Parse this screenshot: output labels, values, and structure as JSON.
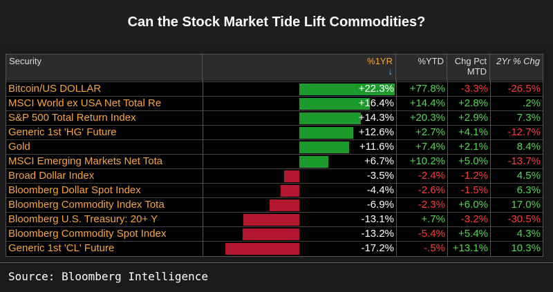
{
  "title": "Can the Stock Market Tide Lift Commodities?",
  "source": "Source: Bloomberg Intelligence",
  "colors": {
    "positive_bar": "#1c9b2c",
    "negative_bar": "#b3162f",
    "positive_text": "#52d852",
    "negative_text": "#ff3a3a",
    "security_text": "#f7a53c",
    "sort_header": "#f7a53c"
  },
  "header": {
    "security": "Security",
    "one_yr": "%1YR",
    "sort_icon": "↓",
    "ytd": "%YTD",
    "mtd_line1": "Chg Pct",
    "mtd_line2": "MTD",
    "two_yr": "2Yr % Chg"
  },
  "chart_data": {
    "type": "table",
    "columns": [
      "Security",
      "%1YR",
      "%YTD",
      "Chg Pct MTD",
      "2Yr % Chg"
    ],
    "rows": [
      {
        "security": "Bitcoin/US DOLLAR",
        "one_yr": 22.3,
        "one_yr_label": "+22.3%",
        "ytd": "+77.8%",
        "mtd": "-3.3%",
        "two_yr": "-26.5%"
      },
      {
        "security": "MSCI World ex USA Net Total Re",
        "one_yr": 16.4,
        "one_yr_label": "+16.4%",
        "ytd": "+14.4%",
        "mtd": "+2.8%",
        "two_yr": ".2%"
      },
      {
        "security": "S&P 500 Total Return Index",
        "one_yr": 14.3,
        "one_yr_label": "+14.3%",
        "ytd": "+20.3%",
        "mtd": "+2.9%",
        "two_yr": "7.3%"
      },
      {
        "security": "Generic 1st 'HG' Future",
        "one_yr": 12.6,
        "one_yr_label": "+12.6%",
        "ytd": "+2.7%",
        "mtd": "+4.1%",
        "two_yr": "-12.7%"
      },
      {
        "security": "Gold",
        "one_yr": 11.6,
        "one_yr_label": "+11.6%",
        "ytd": "+7.4%",
        "mtd": "+2.1%",
        "two_yr": "8.4%"
      },
      {
        "security": "MSCI Emerging Markets Net Tota",
        "one_yr": 6.7,
        "one_yr_label": "+6.7%",
        "ytd": "+10.2%",
        "mtd": "+5.0%",
        "two_yr": "-13.7%"
      },
      {
        "security": "Broad Dollar Index",
        "one_yr": -3.5,
        "one_yr_label": "-3.5%",
        "ytd": "-2.4%",
        "mtd": "-1.2%",
        "two_yr": "4.5%"
      },
      {
        "security": "Bloomberg Dollar Spot Index",
        "one_yr": -4.4,
        "one_yr_label": "-4.4%",
        "ytd": "-2.6%",
        "mtd": "-1.5%",
        "two_yr": "6.3%"
      },
      {
        "security": "Bloomberg Commodity Index Tota",
        "one_yr": -6.9,
        "one_yr_label": "-6.9%",
        "ytd": "-2.3%",
        "mtd": "+6.0%",
        "two_yr": "17.0%"
      },
      {
        "security": "Bloomberg U.S. Treasury: 20+ Y",
        "one_yr": -13.1,
        "one_yr_label": "-13.1%",
        "ytd": "+.7%",
        "mtd": "-3.2%",
        "two_yr": "-30.5%"
      },
      {
        "security": "Bloomberg Commodity Spot Index",
        "one_yr": -13.2,
        "one_yr_label": "-13.2%",
        "ytd": "-5.4%",
        "mtd": "+5.4%",
        "two_yr": "4.3%"
      },
      {
        "security": "Generic 1st 'CL' Future",
        "one_yr": -17.2,
        "one_yr_label": "-17.2%",
        "ytd": "-.5%",
        "mtd": "+13.1%",
        "two_yr": "10.3%"
      }
    ]
  }
}
